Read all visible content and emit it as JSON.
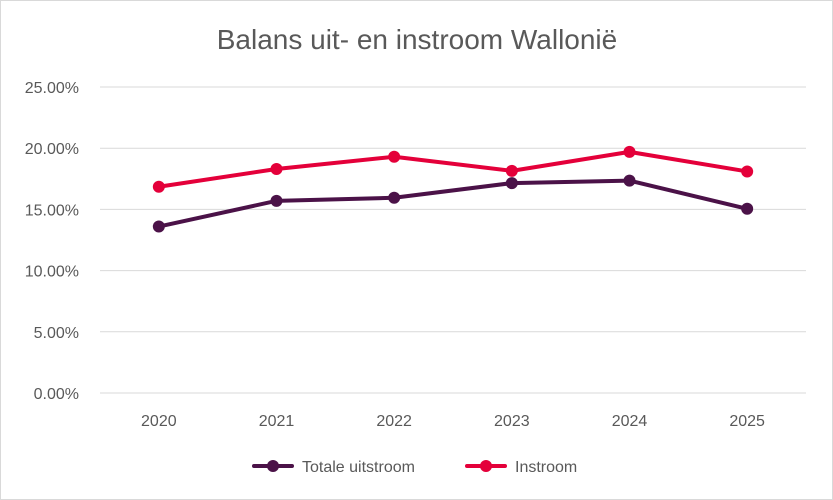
{
  "chart_data": {
    "type": "line",
    "title": "Balans uit- en instroom Wallonië",
    "xlabel": "",
    "ylabel": "",
    "categories": [
      "2020",
      "2021",
      "2022",
      "2023",
      "2024",
      "2025"
    ],
    "ylim": [
      0,
      25
    ],
    "yticks": [
      "0.00%",
      "5.00%",
      "10.00%",
      "15.00%",
      "20.00%",
      "25.00%"
    ],
    "ytick_values": [
      0,
      5,
      10,
      15,
      20,
      25
    ],
    "grid": true,
    "legend_position": "bottom",
    "series": [
      {
        "name": "Totale uitstroom",
        "color": "#4b1248",
        "values": [
          13.6,
          15.7,
          15.95,
          17.15,
          17.35,
          15.05
        ]
      },
      {
        "name": "Instroom",
        "color": "#e4003a",
        "values": [
          16.85,
          18.3,
          19.3,
          18.15,
          19.7,
          18.1
        ]
      }
    ]
  }
}
